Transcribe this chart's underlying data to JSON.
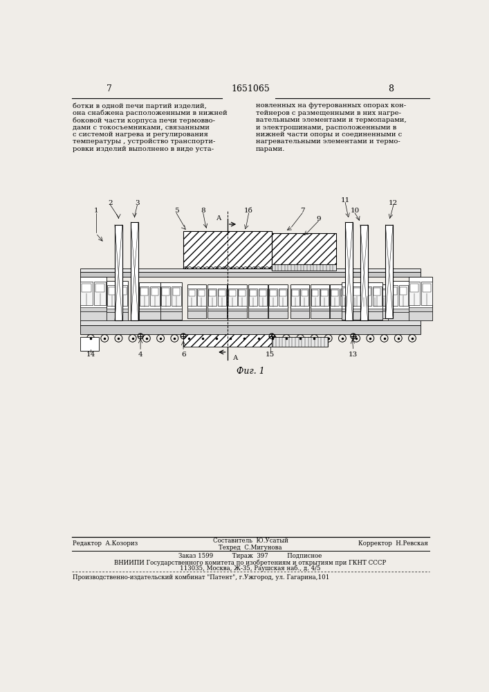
{
  "page_width": 7.07,
  "page_height": 10.0,
  "background_color": "#f0ede8",
  "page_num_left": "7",
  "patent_num": "1651065",
  "page_num_right": "8",
  "header_fontsize": 9,
  "body_fontsize": 7.2,
  "text_left": [
    "ботки в одной печи партий изделий,",
    "она снабжена расположенными в нижней",
    "боковой части корпуса печи термовво-",
    "дами с токосъемниками, связанными",
    "с системой нагрева и регулирования",
    "температуры , устройство транспорти-",
    "ровки изделий выполнено в виде уста-"
  ],
  "text_right": [
    "новленных на футерованных опорах кон-",
    "тейнеров с размещенными в них нагре-",
    "вательными элементами и термопарами,",
    "и электрошинами, расположенными в",
    "нижней части опоры и соединенными с",
    "нагревательными элементами и термо-",
    "парами."
  ],
  "fig_caption": "Фиг. 1",
  "editor_line": "Редактор  А.Козориз",
  "composer_line": "Составитель  Ю.Усатый",
  "techred_line": "Техред  С.Мигунова",
  "corrector_line": "Корректор  Н.Ревская",
  "order_line": "Заказ 1599          Тираж  397          Подписное",
  "vnipi_line": "ВНИИПИ Государственного комитета по изобретениям и открытиям при ГКНТ СССР",
  "address_line": "113035, Москва, Ж-35, Раушская наб., д. 4/5",
  "publisher_line": "Производственно-издательский комбинат \"Патент\", г.Ужгород, ул. Гагарина,101"
}
